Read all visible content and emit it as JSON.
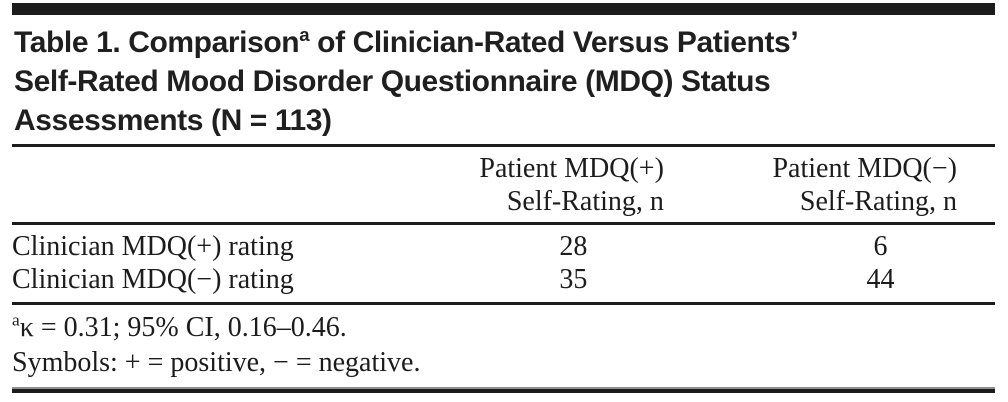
{
  "title": {
    "line1_prefix": "Table 1. Comparison",
    "line1_superscript": "a",
    "line1_suffix": " of Clinician-Rated Versus Patients’",
    "line2": "Self-Rated Mood Disorder Questionnaire (MDQ) Status",
    "line3": "Assessments (N = 113)"
  },
  "table": {
    "columns": [
      {
        "line1": "Patient MDQ(+)",
        "line2": "Self-Rating, n"
      },
      {
        "line1": "Patient MDQ(−)",
        "line2": "Self-Rating, n"
      }
    ],
    "rows": [
      {
        "label": "Clinician MDQ(+) rating",
        "values": [
          "28",
          "6"
        ]
      },
      {
        "label": "Clinician MDQ(−) rating",
        "values": [
          "35",
          "44"
        ]
      }
    ]
  },
  "footnotes": {
    "kappa_sup": "a",
    "kappa_text": "κ = 0.31; 95% CI, 0.16–0.46.",
    "symbols_text": "Symbols: + = positive, − = negative."
  },
  "colors": {
    "text": "#1c1c1c",
    "rule_black": "#1c1c1c",
    "rule_gray": "#8f8f8f",
    "background": "#ffffff"
  }
}
